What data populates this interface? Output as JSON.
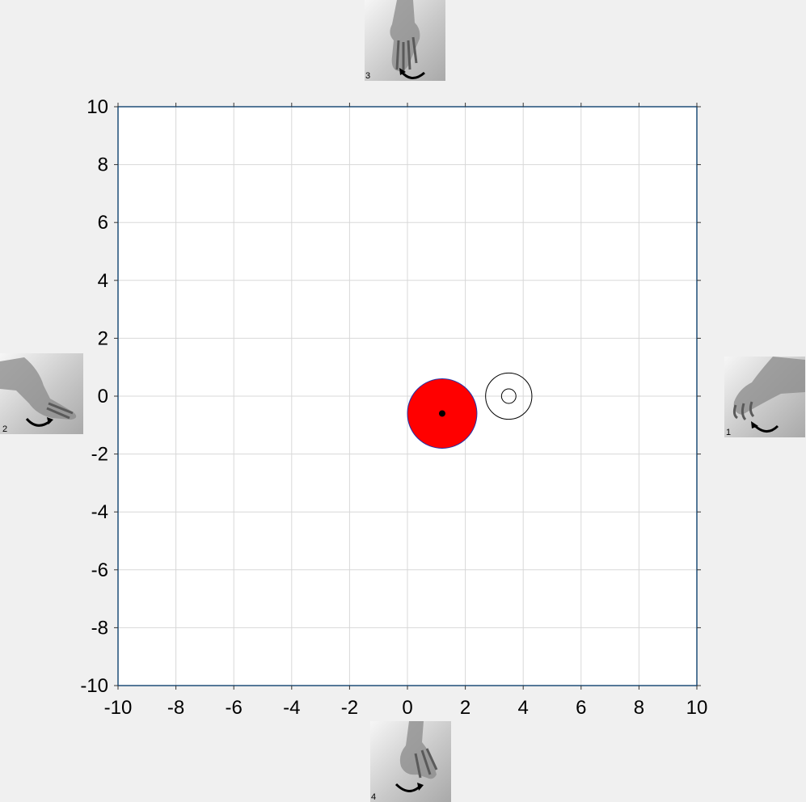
{
  "chart_data": {
    "type": "scatter",
    "xlim": [
      -10,
      10
    ],
    "ylim": [
      -10,
      10
    ],
    "x_ticks": [
      -10,
      -8,
      -6,
      -4,
      -2,
      0,
      2,
      4,
      6,
      8,
      10
    ],
    "y_ticks": [
      -10,
      -8,
      -6,
      -4,
      -2,
      0,
      2,
      4,
      6,
      8,
      10
    ],
    "grid": true,
    "cursor": {
      "x": 1.2,
      "y": -0.6,
      "radius": 1.2,
      "fill": "#ff0000",
      "stroke": "#2233aa"
    },
    "target": {
      "x": 3.5,
      "y": 0.0,
      "outer_radius": 0.8,
      "inner_radius": 0.25
    }
  },
  "hands": [
    {
      "id": "3",
      "label": "3",
      "position": "top"
    },
    {
      "id": "2",
      "label": "2",
      "position": "left"
    },
    {
      "id": "1",
      "label": "1",
      "position": "right"
    },
    {
      "id": "4",
      "label": "4",
      "position": "bottom"
    }
  ],
  "colors": {
    "background": "#f0f0f0",
    "plot_background": "#ffffff",
    "axis": "#1f4e79",
    "grid": "#d8d8d8"
  }
}
